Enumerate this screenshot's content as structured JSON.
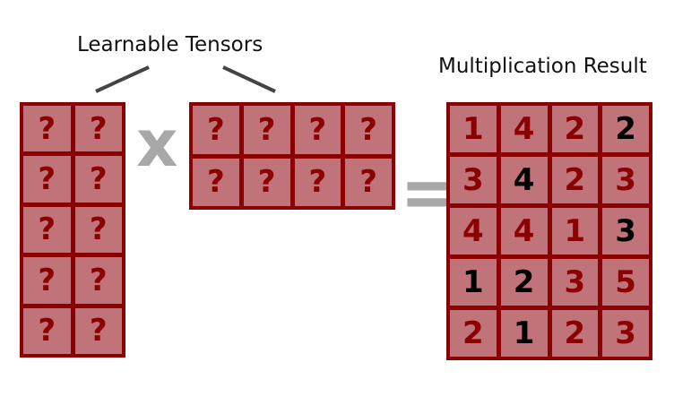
{
  "labels": {
    "learnable": "Learnable Tensors",
    "result": "Multiplication Result"
  },
  "operators": {
    "multiply": "x",
    "equals": "="
  },
  "colors": {
    "matrix_border": "#8b0000",
    "cell_fill": "#c07378",
    "placeholder_text": "#8b0000",
    "highlight_text": "#000000",
    "operator": "#a8a8a8"
  },
  "matrix_a": {
    "rows": 5,
    "cols": 2,
    "cells": [
      "?",
      "?",
      "?",
      "?",
      "?",
      "?",
      "?",
      "?",
      "?",
      "?"
    ]
  },
  "matrix_b": {
    "rows": 2,
    "cols": 4,
    "cells": [
      "?",
      "?",
      "?",
      "?",
      "?",
      "?",
      "?",
      "?"
    ]
  },
  "result": {
    "rows": 5,
    "cols": 4,
    "cells": [
      {
        "v": "1",
        "known": false
      },
      {
        "v": "4",
        "known": false
      },
      {
        "v": "2",
        "known": false
      },
      {
        "v": "2",
        "known": true
      },
      {
        "v": "3",
        "known": false
      },
      {
        "v": "4",
        "known": true
      },
      {
        "v": "2",
        "known": false
      },
      {
        "v": "3",
        "known": false
      },
      {
        "v": "4",
        "known": false
      },
      {
        "v": "4",
        "known": false
      },
      {
        "v": "1",
        "known": false
      },
      {
        "v": "3",
        "known": true
      },
      {
        "v": "1",
        "known": true
      },
      {
        "v": "2",
        "known": true
      },
      {
        "v": "3",
        "known": false
      },
      {
        "v": "5",
        "known": false
      },
      {
        "v": "2",
        "known": false
      },
      {
        "v": "1",
        "known": true
      },
      {
        "v": "2",
        "known": false
      },
      {
        "v": "3",
        "known": false
      }
    ]
  }
}
